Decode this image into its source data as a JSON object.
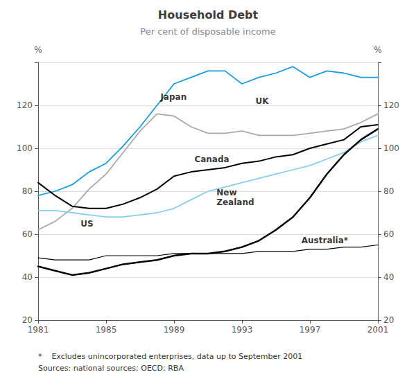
{
  "chart_data": {
    "type": "line",
    "title": "Household Debt",
    "subtitle": "Per cent of disposable income",
    "ylabel": "%",
    "y2label": "%",
    "footnotes": [
      "*    Excludes unincorporated enterprises, data up to September 2001",
      "Sources: national sources; OECD; RBA"
    ],
    "x": [
      1981,
      1982,
      1983,
      1984,
      1985,
      1986,
      1987,
      1988,
      1989,
      1990,
      1991,
      1992,
      1993,
      1994,
      1995,
      1996,
      1997,
      1998,
      1999,
      2000,
      2001
    ],
    "xlim": [
      1981,
      2001
    ],
    "xticks": [
      1981,
      1985,
      1989,
      1993,
      1997,
      2001
    ],
    "ylim": [
      20,
      140
    ],
    "yticks": [
      20,
      40,
      60,
      80,
      100,
      120
    ],
    "y2lim": [
      20,
      140
    ],
    "y2ticks": [
      20,
      40,
      60,
      80,
      100,
      120
    ],
    "grid": true,
    "series": [
      {
        "name": "UK",
        "color": "#aaaaaa",
        "values": [
          62,
          66,
          72,
          81,
          88,
          98,
          108,
          116,
          115,
          110,
          107,
          107,
          108,
          106,
          106,
          106,
          107,
          108,
          109,
          112,
          116
        ]
      },
      {
        "name": "New\nZealand",
        "color": "#87ceeb",
        "values": [
          71,
          71,
          70,
          69,
          68,
          68,
          69,
          70,
          72,
          76,
          80,
          82,
          84,
          86,
          88,
          90,
          92,
          95,
          98,
          103,
          106
        ]
      },
      {
        "name": "Japan",
        "color": "#1a9bdc",
        "values": [
          78,
          80,
          83,
          89,
          93,
          101,
          110,
          120,
          130,
          133,
          136,
          136,
          130,
          133,
          135,
          138,
          133,
          136,
          135,
          133,
          133
        ]
      },
      {
        "name": "US",
        "color": "#000000",
        "values": [
          49,
          48,
          48,
          48,
          50,
          50,
          50,
          50,
          51,
          51,
          51,
          51,
          51,
          52,
          52,
          52,
          53,
          53,
          54,
          54,
          55
        ]
      },
      {
        "name": "Canada",
        "color": "#000000",
        "values": [
          84,
          78,
          73,
          72,
          72,
          74,
          77,
          81,
          87,
          89,
          90,
          91,
          93,
          94,
          96,
          97,
          100,
          102,
          104,
          110,
          111
        ]
      },
      {
        "name": "Australia*",
        "color": "#000000",
        "values": [
          45,
          43,
          41,
          42,
          44,
          46,
          47,
          48,
          50,
          51,
          51,
          52,
          54,
          57,
          62,
          68,
          77,
          88,
          97,
          104,
          109
        ]
      }
    ],
    "annotations": [
      {
        "text": "UK",
        "x": 1993.8,
        "y": 122
      },
      {
        "text": "New\nZealand",
        "x": 1991.5,
        "y": 77
      },
      {
        "text": "Japan",
        "x": 1988.2,
        "y": 124
      },
      {
        "text": "US",
        "x": 1983.5,
        "y": 65
      },
      {
        "text": "Canada",
        "x": 1990.2,
        "y": 95
      },
      {
        "text": "Australia*",
        "x": 1996.5,
        "y": 57
      }
    ]
  }
}
